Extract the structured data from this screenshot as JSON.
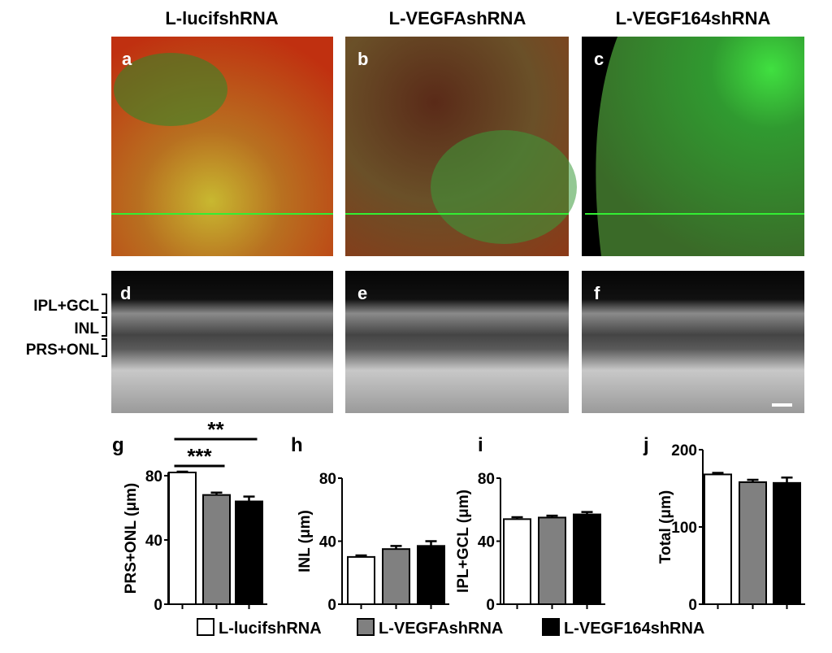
{
  "column_titles": [
    "L-lucifshRNA",
    "L-VEGFAshRNA",
    "L-VEGF164shRNA"
  ],
  "panel_labels": [
    "a",
    "b",
    "c",
    "d",
    "e",
    "f"
  ],
  "layer_labels": [
    "IPL+GCL",
    "INL",
    "PRS+ONL"
  ],
  "legend": [
    {
      "name": "L-lucifshRNA",
      "color": "#ffffff"
    },
    {
      "name": "L-VEGFAshRNA",
      "color": "#808080"
    },
    {
      "name": "L-VEGF164shRNA",
      "color": "#000000"
    }
  ],
  "chart_data": [
    {
      "type": "bar",
      "title": "g",
      "ylabel": "PRS+ONL (μm)",
      "values": [
        82,
        68,
        64
      ],
      "errors": [
        0.5,
        1.5,
        3
      ],
      "ylim": [
        0,
        82
      ],
      "yticks": [
        0,
        40,
        80
      ],
      "annotations": [
        "**",
        "***"
      ]
    },
    {
      "type": "bar",
      "title": "h",
      "ylabel": "INL (μm)",
      "values": [
        30,
        35,
        37
      ],
      "errors": [
        1,
        2,
        3
      ],
      "ylim": [
        0,
        80
      ],
      "yticks": [
        0,
        40,
        80
      ]
    },
    {
      "type": "bar",
      "title": "i",
      "ylabel": "IPL+GCL (μm)",
      "values": [
        54,
        55,
        57
      ],
      "errors": [
        1.2,
        1.2,
        1.5
      ],
      "ylim": [
        0,
        80
      ],
      "yticks": [
        0,
        40,
        80
      ]
    },
    {
      "type": "bar",
      "title": "j",
      "ylabel": "Total (μm)",
      "values": [
        168,
        158,
        157
      ],
      "errors": [
        2,
        3,
        7
      ],
      "ylim": [
        0,
        200
      ],
      "yticks": [
        0,
        100,
        200
      ]
    }
  ]
}
